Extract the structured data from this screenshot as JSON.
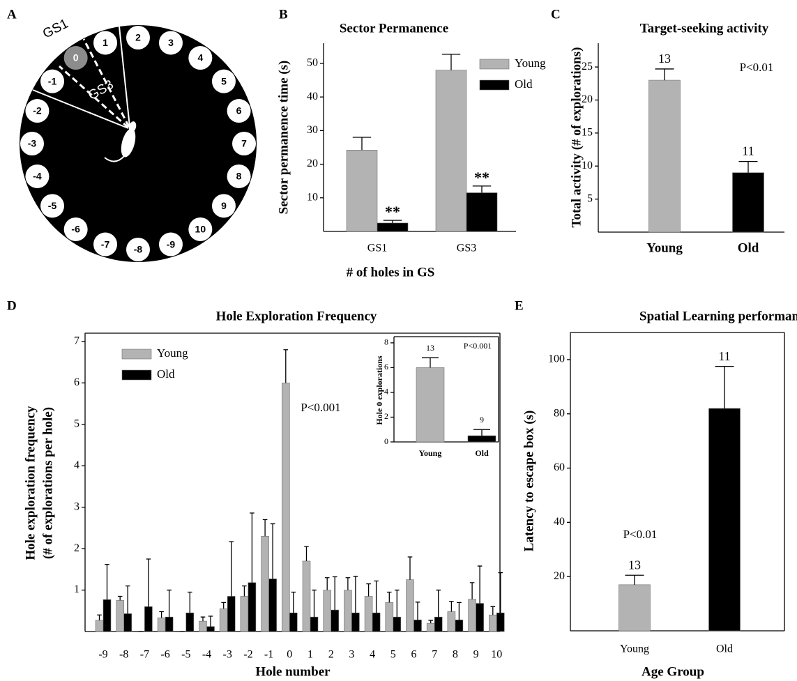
{
  "diagram": {
    "panel": "A",
    "sectors": [
      "GS1",
      "GS3"
    ],
    "holes": [
      "-9",
      "-8",
      "-7",
      "-6",
      "-5",
      "-4",
      "-3",
      "-2",
      "-1",
      "0",
      "1",
      "2",
      "3",
      "4",
      "5",
      "6",
      "7",
      "8",
      "9",
      "10"
    ]
  },
  "chart_data": [
    {
      "type": "bar",
      "panel": "B",
      "title": "Sector Permanence",
      "xlabel": "# of holes in GS",
      "ylabel": "Sector permanence time (s)",
      "categories": [
        "GS1",
        "GS3"
      ],
      "series": [
        {
          "name": "Young",
          "color": "#b3b3b3",
          "values": [
            24.2,
            48
          ],
          "errors": [
            3.8,
            4.7
          ]
        },
        {
          "name": "Old",
          "color": "#000000",
          "values": [
            2.5,
            11.5
          ],
          "errors": [
            0.8,
            2
          ],
          "significance": [
            "**",
            "**"
          ]
        }
      ],
      "ylim": [
        0,
        56
      ],
      "yticks": [
        10,
        20,
        30,
        40,
        50
      ],
      "legend": "upper right"
    },
    {
      "type": "bar",
      "panel": "C",
      "title": "Target-seeking activity",
      "ylabel": "Total activity  (# of explorations)",
      "categories": [
        "Young",
        "Old"
      ],
      "values": [
        23,
        9
      ],
      "errors": [
        1.7,
        1.7
      ],
      "colors": [
        "#b3b3b3",
        "#000000"
      ],
      "n_labels": [
        "13",
        "11"
      ],
      "annotation": "P<0.01",
      "ylim": [
        0,
        28.6
      ],
      "yticks": [
        5,
        10,
        15,
        20,
        25
      ]
    },
    {
      "type": "bar",
      "panel": "D",
      "title": "Hole Exploration Frequency",
      "xlabel": "Hole number",
      "ylabel": [
        "Hole exploration frequency",
        "(# of explorations per hole)"
      ],
      "categories": [
        "-9",
        "-8",
        "-7",
        "-6",
        "-5",
        "-4",
        "-3",
        "-2",
        "-1",
        "0",
        "1",
        "2",
        "3",
        "4",
        "5",
        "6",
        "7",
        "8",
        "9",
        "10"
      ],
      "series": [
        {
          "name": "Young",
          "color": "#b3b3b3",
          "values": [
            0.27,
            0.75,
            0,
            0.33,
            0,
            0.25,
            0.55,
            0.85,
            2.3,
            6.0,
            1.7,
            1.0,
            1.0,
            0.85,
            0.7,
            1.25,
            0.2,
            0.48,
            0.78,
            0.4
          ],
          "errors": [
            0.13,
            0.1,
            0,
            0.15,
            0,
            0.1,
            0.15,
            0.25,
            0.4,
            0.8,
            0.35,
            0.3,
            0.3,
            0.3,
            0.25,
            0.55,
            0.07,
            0.25,
            0.4,
            0.2
          ]
        },
        {
          "name": "Old",
          "color": "#000000",
          "values": [
            0.77,
            0.43,
            0.6,
            0.35,
            0.45,
            0.12,
            0.85,
            1.18,
            1.27,
            0.45,
            0.35,
            0.52,
            0.45,
            0.45,
            0.35,
            0.28,
            0.35,
            0.28,
            0.68,
            0.45
          ],
          "errors": [
            0.85,
            0.67,
            1.15,
            0.65,
            0.5,
            0.25,
            1.32,
            1.68,
            1.33,
            0.5,
            0.65,
            0.8,
            0.88,
            0.77,
            0.65,
            0.43,
            0.65,
            0.42,
            0.9,
            0.97
          ]
        }
      ],
      "annotation": "P<0.001",
      "ylim": [
        0,
        7.2
      ],
      "yticks": [
        1,
        2,
        3,
        4,
        5,
        6,
        7
      ],
      "legend": "upper left",
      "box": true,
      "inset": {
        "type": "bar",
        "ylabel": "Hole 0 explorations",
        "categories": [
          "Young",
          "Old"
        ],
        "values": [
          6,
          0.5
        ],
        "errors": [
          0.8,
          0.5
        ],
        "colors": [
          "#b3b3b3",
          "#000000"
        ],
        "n_labels": [
          "13",
          "9"
        ],
        "annotation": "P<0.001",
        "ylim": [
          0,
          8.5
        ],
        "yticks": [
          0,
          2,
          4,
          6,
          8
        ],
        "box": true
      }
    },
    {
      "type": "bar",
      "panel": "E",
      "title": "Spatial Learning performance",
      "xlabel": "Age Group",
      "ylabel": "Latency to escape box (s)",
      "categories": [
        "Young",
        "Old"
      ],
      "values": [
        17,
        82
      ],
      "errors": [
        3.5,
        15.5
      ],
      "colors": [
        "#b3b3b3",
        "#000000"
      ],
      "n_labels": [
        "13",
        "11"
      ],
      "annotation": "P<0.01",
      "ylim": [
        0,
        110
      ],
      "yticks": [
        20,
        40,
        60,
        80,
        100
      ],
      "box": true
    }
  ]
}
